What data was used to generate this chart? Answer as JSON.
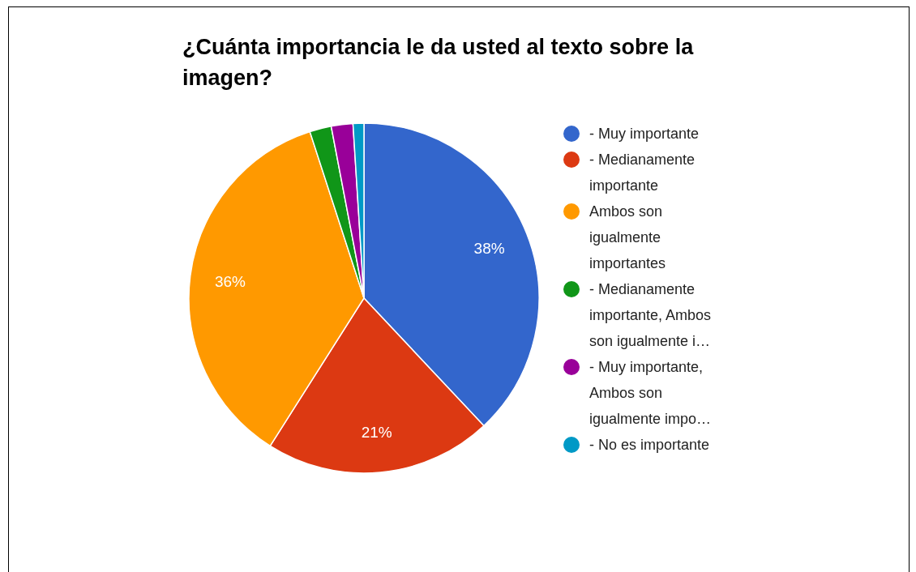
{
  "chart_data": {
    "type": "pie",
    "title": "¿Cuánta importancia le da usted al texto sobre la imagen?",
    "categories": [
      "- Muy importante",
      "- Medianamente importante",
      "Ambos son igualmente importantes",
      "- Medianamente importante, Ambos son igualmente i…",
      "- Muy importante, Ambos son igualmente impo…",
      "- No es importante"
    ],
    "values": [
      38,
      21,
      36,
      2,
      2,
      1
    ],
    "colors": [
      "#3366cc",
      "#dc3912",
      "#ff9900",
      "#109618",
      "#990099",
      "#0099c6"
    ],
    "value_labels": [
      "38%",
      "21%",
      "36%",
      null,
      null,
      null
    ],
    "legend": "right"
  }
}
